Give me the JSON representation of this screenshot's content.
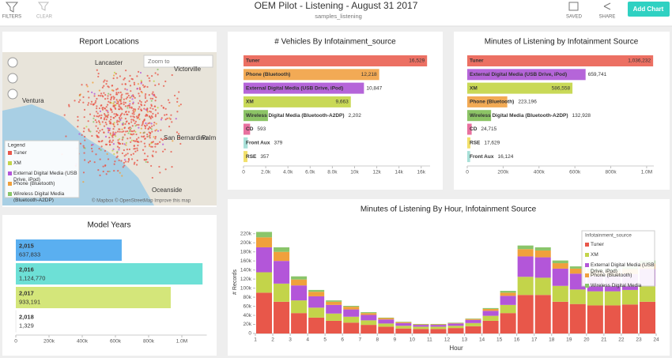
{
  "header": {
    "filters": "FILTERS",
    "clear": "CLEAR",
    "title": "OEM Pilot - Listening - August 31 2017",
    "subtitle": "samples_listening",
    "saved": "SAVED",
    "share": "SHARE",
    "add_chart": "Add Chart"
  },
  "map": {
    "title": "Report Locations",
    "search_placeholder": "Zoom to",
    "cities": [
      "Lancaster",
      "Victorville",
      "Ventura",
      "San Bernardino",
      "Palm",
      "Oceanside"
    ],
    "legend_title": "Legend",
    "legend": [
      {
        "label": "Tuner",
        "color": "#e8574a"
      },
      {
        "label": "XM",
        "color": "#c3d44a"
      },
      {
        "label": "External Digital Media (USB Drive, iPod)",
        "color": "#b356d9"
      },
      {
        "label": "Phone (Bluetooth)",
        "color": "#f0a03c"
      },
      {
        "label": "Wireless Digital Media (Bluetooth-A2DP)",
        "color": "#8ac56a"
      }
    ],
    "attribution": "© Mapbox © OpenStreetMap Improve this map"
  },
  "chart_data": [
    {
      "type": "bar",
      "orientation": "horizontal",
      "title": "# Vehicles By Infotainment_source",
      "categories": [
        "Tuner",
        "Phone (Bluetooth)",
        "External Digital Media (USB Drive, iPod)",
        "XM",
        "Wireless Digital Media (Bluetooth-A2DP)",
        "CD",
        "Front Aux",
        "RSE"
      ],
      "values": [
        16529,
        12218,
        10847,
        9663,
        2202,
        593,
        379,
        357
      ],
      "value_labels": [
        "16,529",
        "12,218",
        "10,847",
        "9,663",
        "2,202",
        "593",
        "379",
        "357"
      ],
      "colors": [
        "#ec7063",
        "#f2aa55",
        "#b565d9",
        "#c9d957",
        "#8cc466",
        "#e8719f",
        "#a8e0d8",
        "#f2e06b"
      ],
      "xlim": [
        0,
        16800
      ],
      "xticks": [
        0,
        {
          "value": 2000,
          "label": "2.0k"
        },
        {
          "value": 4000,
          "label": "4.0k"
        },
        {
          "value": 6000,
          "label": "6.0k"
        },
        {
          "value": 8000,
          "label": "8.0k"
        },
        {
          "value": 10000,
          "label": "10k"
        },
        {
          "value": 12000,
          "label": "12k"
        },
        {
          "value": 14000,
          "label": "14k"
        },
        {
          "value": 16000,
          "label": "16k"
        }
      ]
    },
    {
      "type": "bar",
      "orientation": "horizontal",
      "title": "Minutes of Listening by Infotainment Source",
      "categories": [
        "Tuner",
        "External Digital Media (USB Drive, iPod)",
        "XM",
        "Phone (Bluetooth)",
        "Wireless Digital Media (Bluetooth-A2DP)",
        "CD",
        "RSE",
        "Front Aux"
      ],
      "values": [
        1036232,
        659741,
        586558,
        223196,
        132928,
        24715,
        17629,
        16124
      ],
      "value_labels": [
        "1,036,232",
        "659,741",
        "586,558",
        "223,196",
        "132,928",
        "24,715",
        "17,629",
        "16,124"
      ],
      "colors": [
        "#ec7063",
        "#b565d9",
        "#c9d957",
        "#f2aa55",
        "#8cc466",
        "#e8719f",
        "#f2e06b",
        "#a8e0d8"
      ],
      "xlim": [
        0,
        1040000
      ],
      "xticks": [
        0,
        {
          "value": 200000,
          "label": "200k"
        },
        {
          "value": 400000,
          "label": "400k"
        },
        {
          "value": 600000,
          "label": "600k"
        },
        {
          "value": 800000,
          "label": "800k"
        },
        {
          "value": 1000000,
          "label": "1.0M"
        }
      ]
    },
    {
      "type": "bar",
      "orientation": "horizontal",
      "title": "Model Years",
      "categories": [
        "2,015",
        "2,016",
        "2,017",
        "2,018"
      ],
      "values": [
        637833,
        1124770,
        933191,
        1329
      ],
      "value_labels": [
        "637,833",
        "1,124,770",
        "933,191",
        "1,329"
      ],
      "colors": [
        "#5aaff0",
        "#6de0d6",
        "#d4e67a",
        "#ffffff"
      ],
      "xlim": [
        0,
        1150000
      ],
      "xticks": [
        0,
        {
          "value": 200000,
          "label": "200k"
        },
        {
          "value": 400000,
          "label": "400k"
        },
        {
          "value": 600000,
          "label": "600k"
        },
        {
          "value": 800000,
          "label": "800k"
        },
        {
          "value": 1000000,
          "label": "1.0M"
        }
      ]
    },
    {
      "type": "stacked_bar",
      "title": "Minutes of Listening By Hour, Infotainment Source",
      "x_label": "Hour",
      "y_label": "# Records",
      "legend_title": "Infotainment_source",
      "x": [
        1,
        2,
        3,
        4,
        5,
        6,
        7,
        8,
        9,
        10,
        11,
        12,
        13,
        14,
        15,
        16,
        17,
        18,
        19,
        20,
        21,
        22,
        23
      ],
      "series": [
        {
          "name": "Tuner",
          "color": "#e8574a",
          "values": [
            90,
            70,
            45,
            35,
            28,
            24,
            19,
            15,
            11,
            10,
            10,
            12,
            16,
            28,
            45,
            85,
            85,
            70,
            65,
            62,
            62,
            64,
            70
          ]
        },
        {
          "name": "XM",
          "color": "#c3d44a",
          "values": [
            45,
            40,
            28,
            22,
            16,
            13,
            10,
            7,
            6,
            5,
            5,
            5,
            7,
            11,
            18,
            40,
            38,
            35,
            32,
            31,
            31,
            32,
            34
          ]
        },
        {
          "name": "External Digital Media (USB Drive, iPod)",
          "color": "#b356d9",
          "values": [
            55,
            50,
            33,
            25,
            19,
            16,
            12,
            9,
            6,
            4,
            4,
            5,
            7,
            11,
            20,
            45,
            45,
            38,
            35,
            34,
            34,
            35,
            38
          ]
        },
        {
          "name": "Phone (Bluetooth)",
          "color": "#f0a03c",
          "values": [
            22,
            20,
            13,
            10,
            7,
            6,
            4,
            3,
            2,
            1,
            1,
            1,
            2,
            4,
            7,
            16,
            15,
            12,
            11,
            11,
            11,
            11,
            12
          ]
        },
        {
          "name": "Wireless Digital Media",
          "color": "#8ac56a",
          "values": [
            12,
            10,
            7,
            4,
            3,
            2,
            2,
            1,
            1,
            1,
            1,
            1,
            1,
            2,
            4,
            8,
            7,
            6,
            5,
            5,
            5,
            5,
            7
          ]
        }
      ],
      "xlim": [
        1,
        24
      ],
      "xticks": [
        1,
        2,
        3,
        4,
        5,
        6,
        7,
        8,
        9,
        10,
        11,
        12,
        13,
        14,
        15,
        16,
        17,
        18,
        19,
        20,
        21,
        22,
        23,
        24
      ],
      "ylim": [
        0,
        230
      ],
      "yticks": [
        0,
        {
          "value": 20,
          "label": "20k"
        },
        {
          "value": 40,
          "label": "40k"
        },
        {
          "value": 60,
          "label": "60k"
        },
        {
          "value": 80,
          "label": "80k"
        },
        {
          "value": 100,
          "label": "100k"
        },
        {
          "value": 120,
          "label": "120k"
        },
        {
          "value": 140,
          "label": "140k"
        },
        {
          "value": 160,
          "label": "160k"
        },
        {
          "value": 180,
          "label": "180k"
        },
        {
          "value": 200,
          "label": "200k"
        },
        {
          "value": 220,
          "label": "220k"
        }
      ]
    }
  ]
}
